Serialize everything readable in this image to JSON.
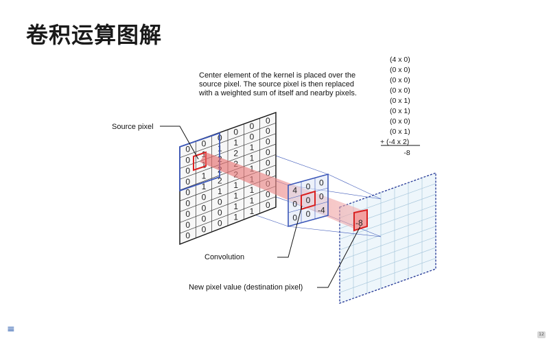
{
  "slide": {
    "title": "卷积运算图解",
    "menu_icon": "≡",
    "page_number": "12"
  },
  "diagram": {
    "description_lines": [
      "Center element of the kernel is placed over the",
      "source pixel. The source pixel is then replaced",
      "with a weighted sum of itself and nearby pixels."
    ],
    "labels": {
      "source_pixel": "Source pixel",
      "convolution": "Convolution",
      "new_pixel": "New pixel value (destination pixel)"
    },
    "equation": {
      "terms": [
        "(4 x 0)",
        "(0 x 0)",
        "(0 x 0)",
        "(0 x 0)",
        "(0 x 1)",
        "(0 x 1)",
        "(0 x 0)",
        "(0 x 1)",
        "+ (-4 x 2)"
      ],
      "result": "-8"
    },
    "source_grid": [
      [
        "0",
        "0",
        "0",
        "0",
        "0",
        "0"
      ],
      [
        "0",
        "1",
        "1",
        "1",
        "0",
        "0"
      ],
      [
        "0",
        "1",
        "2",
        "2",
        "1",
        "0"
      ],
      [
        "0",
        "1",
        "2",
        "2",
        "1",
        "0"
      ],
      [
        "0",
        "1",
        "2",
        "2",
        "1",
        "0"
      ],
      [
        "0",
        "0",
        "1",
        "1",
        "1",
        "0"
      ],
      [
        "0",
        "0",
        "0",
        "1",
        "1",
        "0"
      ],
      [
        "0",
        "0",
        "0",
        "1",
        "1",
        "0"
      ],
      [
        "0",
        "0",
        "0",
        "1",
        "1",
        "0"
      ]
    ],
    "kernel": [
      [
        "4",
        "0",
        "0"
      ],
      [
        "0",
        "0",
        "0"
      ],
      [
        "0",
        "0",
        "-4"
      ]
    ],
    "destination_value": "-8",
    "colors": {
      "highlight": "#d92020",
      "beam": "#e88585",
      "grid_blue": "#3a56b8",
      "dest_grid": "#a9c8dc",
      "dest_fill": "#eef6fb"
    }
  }
}
